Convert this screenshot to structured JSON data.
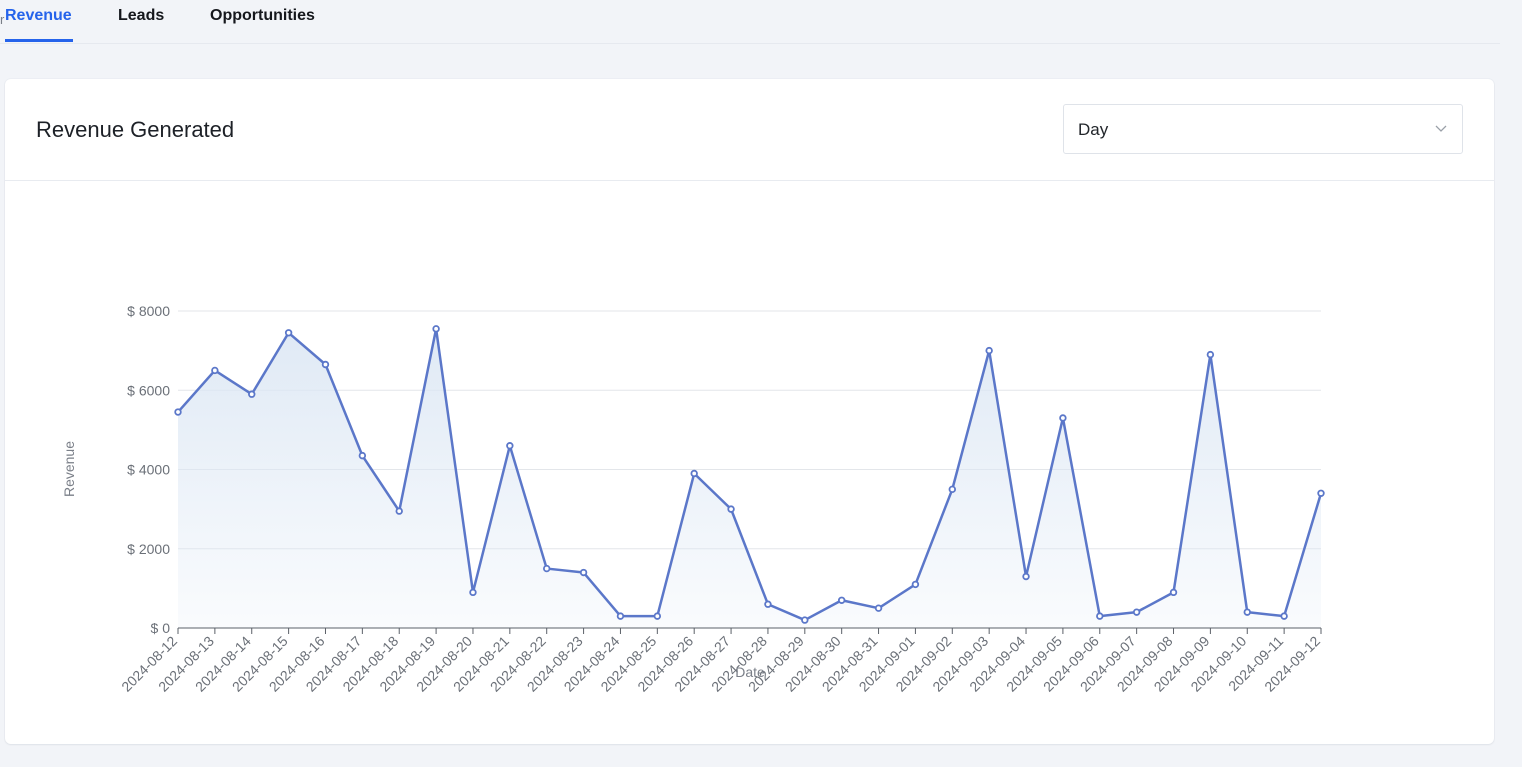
{
  "tabs": [
    {
      "label": "Revenue",
      "active": true
    },
    {
      "label": "Leads",
      "active": false
    },
    {
      "label": "Opportunities",
      "active": false
    }
  ],
  "tab_glyph": "r",
  "card": {
    "title": "Revenue Generated",
    "period_select": {
      "value": "Day"
    }
  },
  "colors": {
    "accent": "#2563eb",
    "line": "#5b77c9",
    "fill_top": "#dce7f4",
    "grid": "#e3e6ea"
  },
  "chart_data": {
    "type": "area",
    "xlabel": "Date",
    "ylabel": "Revenue",
    "ylim": [
      0,
      8000
    ],
    "yticks": [
      0,
      2000,
      4000,
      6000,
      8000
    ],
    "ytick_labels": [
      "$ 0",
      "$ 2000",
      "$ 4000",
      "$ 6000",
      "$ 8000"
    ],
    "grid": true,
    "x": [
      "2024-08-12",
      "2024-08-13",
      "2024-08-14",
      "2024-08-15",
      "2024-08-16",
      "2024-08-17",
      "2024-08-18",
      "2024-08-19",
      "2024-08-20",
      "2024-08-21",
      "2024-08-22",
      "2024-08-23",
      "2024-08-24",
      "2024-08-25",
      "2024-08-26",
      "2024-08-27",
      "2024-08-28",
      "2024-08-29",
      "2024-08-30",
      "2024-08-31",
      "2024-09-01",
      "2024-09-02",
      "2024-09-03",
      "2024-09-04",
      "2024-09-05",
      "2024-09-06",
      "2024-09-07",
      "2024-09-08",
      "2024-09-09",
      "2024-09-10",
      "2024-09-11",
      "2024-09-12"
    ],
    "values": [
      5450,
      6500,
      5900,
      7450,
      6650,
      4350,
      2950,
      7550,
      900,
      4600,
      1500,
      1400,
      300,
      300,
      3900,
      3000,
      600,
      200,
      700,
      500,
      1100,
      3500,
      7000,
      1300,
      5300,
      300,
      400,
      900,
      6900,
      400,
      300,
      3400
    ]
  }
}
